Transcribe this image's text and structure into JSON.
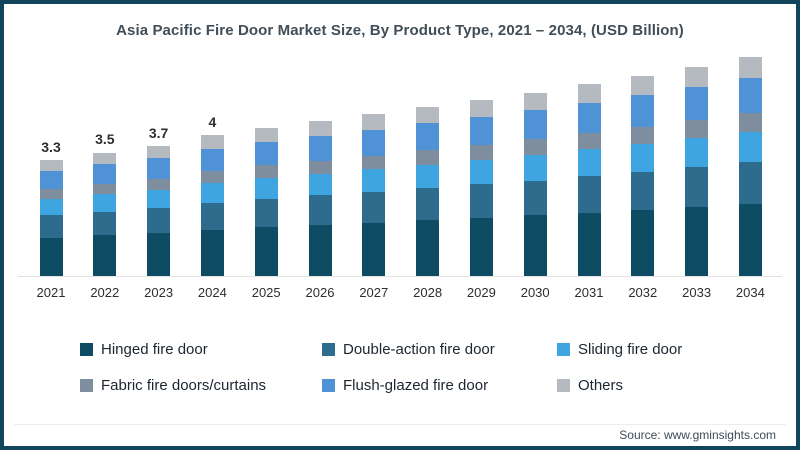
{
  "title": "Asia Pacific Fire Door Market Size, By Product Type,  2021 – 2034, (USD Billion)",
  "source_label": "Source: www.gminsights.com",
  "frame": {
    "border_color": "#11455c",
    "background": "#ffffff"
  },
  "chart_data": {
    "type": "bar",
    "stacked": true,
    "unit": "USD Billion",
    "title": "Asia Pacific Fire Door Market Size, By Product Type, 2021 – 2034, (USD Billion)",
    "xlabel": "",
    "ylabel": "",
    "ylim": [
      0,
      6.5
    ],
    "grid": false,
    "legend_position": "bottom",
    "categories": [
      "2021",
      "2022",
      "2023",
      "2024",
      "2025",
      "2026",
      "2027",
      "2028",
      "2029",
      "2030",
      "2031",
      "2032",
      "2033",
      "2034"
    ],
    "totals": [
      3.3,
      3.5,
      3.7,
      4.0,
      4.2,
      4.4,
      4.6,
      4.8,
      5.0,
      5.2,
      5.45,
      5.7,
      5.95,
      6.2
    ],
    "bar_labels": [
      "3.3",
      "3.5",
      "3.7",
      "4",
      "",
      "",
      "",
      "",
      "",
      "",
      "",
      "",
      "",
      ""
    ],
    "series": [
      {
        "name": "Hinged fire door",
        "color": "#0e4c63",
        "values": [
          1.09,
          1.16,
          1.22,
          1.32,
          1.39,
          1.45,
          1.52,
          1.58,
          1.65,
          1.72,
          1.8,
          1.88,
          1.96,
          2.05
        ]
      },
      {
        "name": "Double-action fire door",
        "color": "#2d6c8c",
        "values": [
          0.63,
          0.67,
          0.7,
          0.76,
          0.8,
          0.84,
          0.87,
          0.91,
          0.95,
          0.99,
          1.04,
          1.08,
          1.13,
          1.18
        ]
      },
      {
        "name": "Sliding fire door",
        "color": "#3fa5e0",
        "values": [
          0.46,
          0.49,
          0.52,
          0.56,
          0.59,
          0.62,
          0.64,
          0.67,
          0.7,
          0.73,
          0.76,
          0.8,
          0.83,
          0.87
        ]
      },
      {
        "name": "Fabric fire doors/curtains",
        "color": "#7e8e9f",
        "values": [
          0.28,
          0.3,
          0.31,
          0.34,
          0.36,
          0.37,
          0.39,
          0.41,
          0.42,
          0.44,
          0.46,
          0.48,
          0.51,
          0.53
        ]
      },
      {
        "name": "Flush-glazed fire door",
        "color": "#4f93d6",
        "values": [
          0.53,
          0.56,
          0.59,
          0.64,
          0.67,
          0.7,
          0.74,
          0.77,
          0.8,
          0.83,
          0.87,
          0.91,
          0.95,
          0.99
        ]
      },
      {
        "name": "Others",
        "color": "#b4bac0",
        "values": [
          0.31,
          0.33,
          0.35,
          0.38,
          0.4,
          0.42,
          0.44,
          0.46,
          0.48,
          0.49,
          0.52,
          0.54,
          0.57,
          0.59
        ]
      }
    ]
  }
}
